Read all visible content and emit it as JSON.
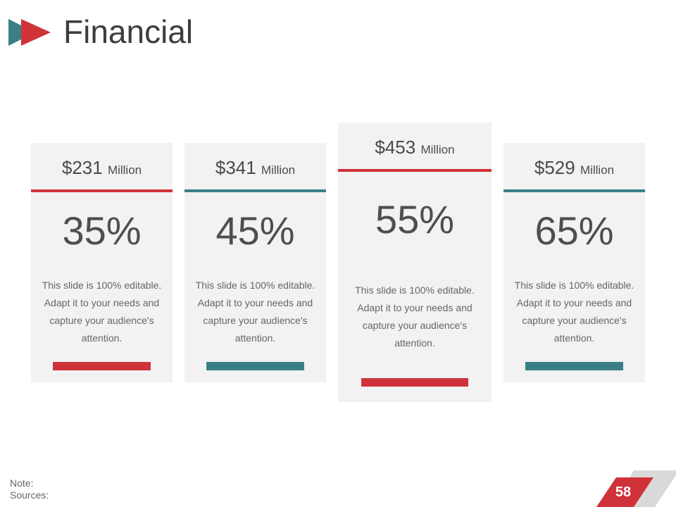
{
  "header": {
    "title": "Financial",
    "icon": "double-arrow-icon"
  },
  "colors": {
    "red": "#d0323a",
    "teal": "#3a7f86",
    "card": "#f2f2f2"
  },
  "cards": [
    {
      "amount": "$231",
      "unit": "Million",
      "percent": "35%",
      "description": "This slide is 100% editable. Adapt it to your needs and capture your audience's attention.",
      "accent": "red"
    },
    {
      "amount": "$341",
      "unit": "Million",
      "percent": "45%",
      "description": "This slide is 100% editable. Adapt it to your needs and capture your audience's attention.",
      "accent": "teal"
    },
    {
      "amount": "$453",
      "unit": "Million",
      "percent": "55%",
      "description": "This slide is 100% editable. Adapt it to your needs and capture your audience's attention.",
      "accent": "red"
    },
    {
      "amount": "$529",
      "unit": "Million",
      "percent": "65%",
      "description": "This slide is 100% editable. Adapt it to your needs and capture your audience's attention.",
      "accent": "teal"
    }
  ],
  "footer": {
    "note": "Note:",
    "sources": "Sources:",
    "page_number": "58"
  }
}
